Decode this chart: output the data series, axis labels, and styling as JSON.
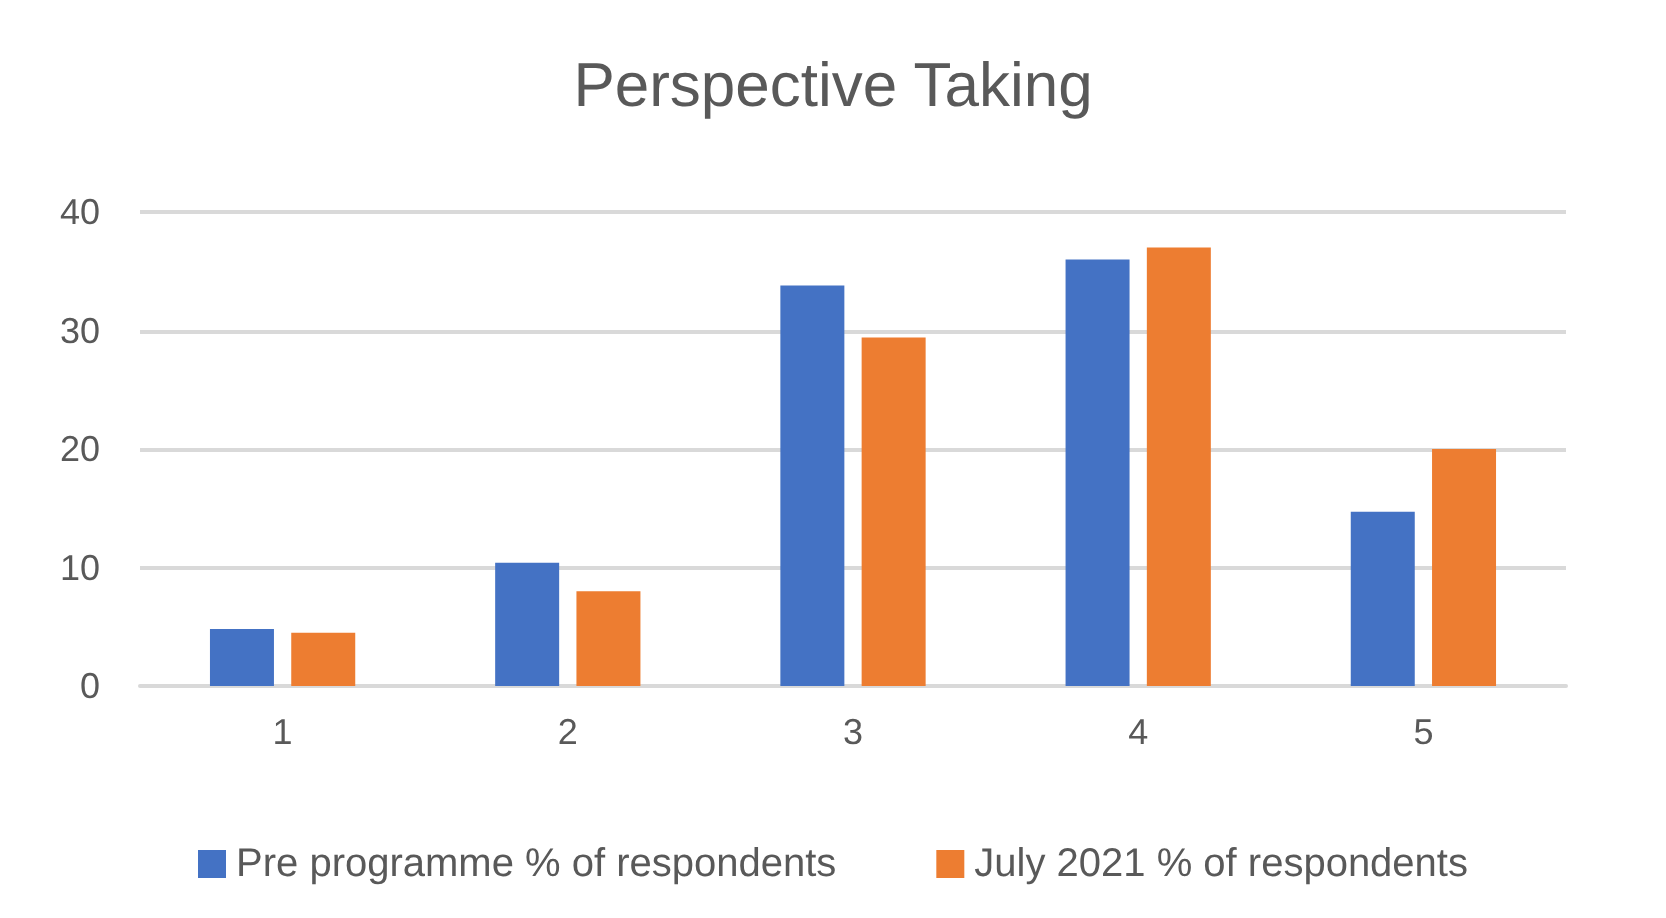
{
  "chart_data": {
    "type": "bar",
    "title": "Perspective Taking",
    "categories": [
      "1",
      "2",
      "3",
      "4",
      "5"
    ],
    "series": [
      {
        "name": "Pre programme % of respondents",
        "color": "#4472c4",
        "values": [
          4.8,
          10.4,
          33.8,
          36.0,
          14.7
        ]
      },
      {
        "name": "July 2021 % of respondents",
        "color": "#ed7d31",
        "values": [
          4.5,
          8.0,
          29.4,
          37.0,
          20.0
        ]
      }
    ],
    "ylim": [
      0,
      40
    ],
    "yticks": [
      0,
      10,
      20,
      30,
      40
    ],
    "grid": "y",
    "legend": "bottom"
  }
}
